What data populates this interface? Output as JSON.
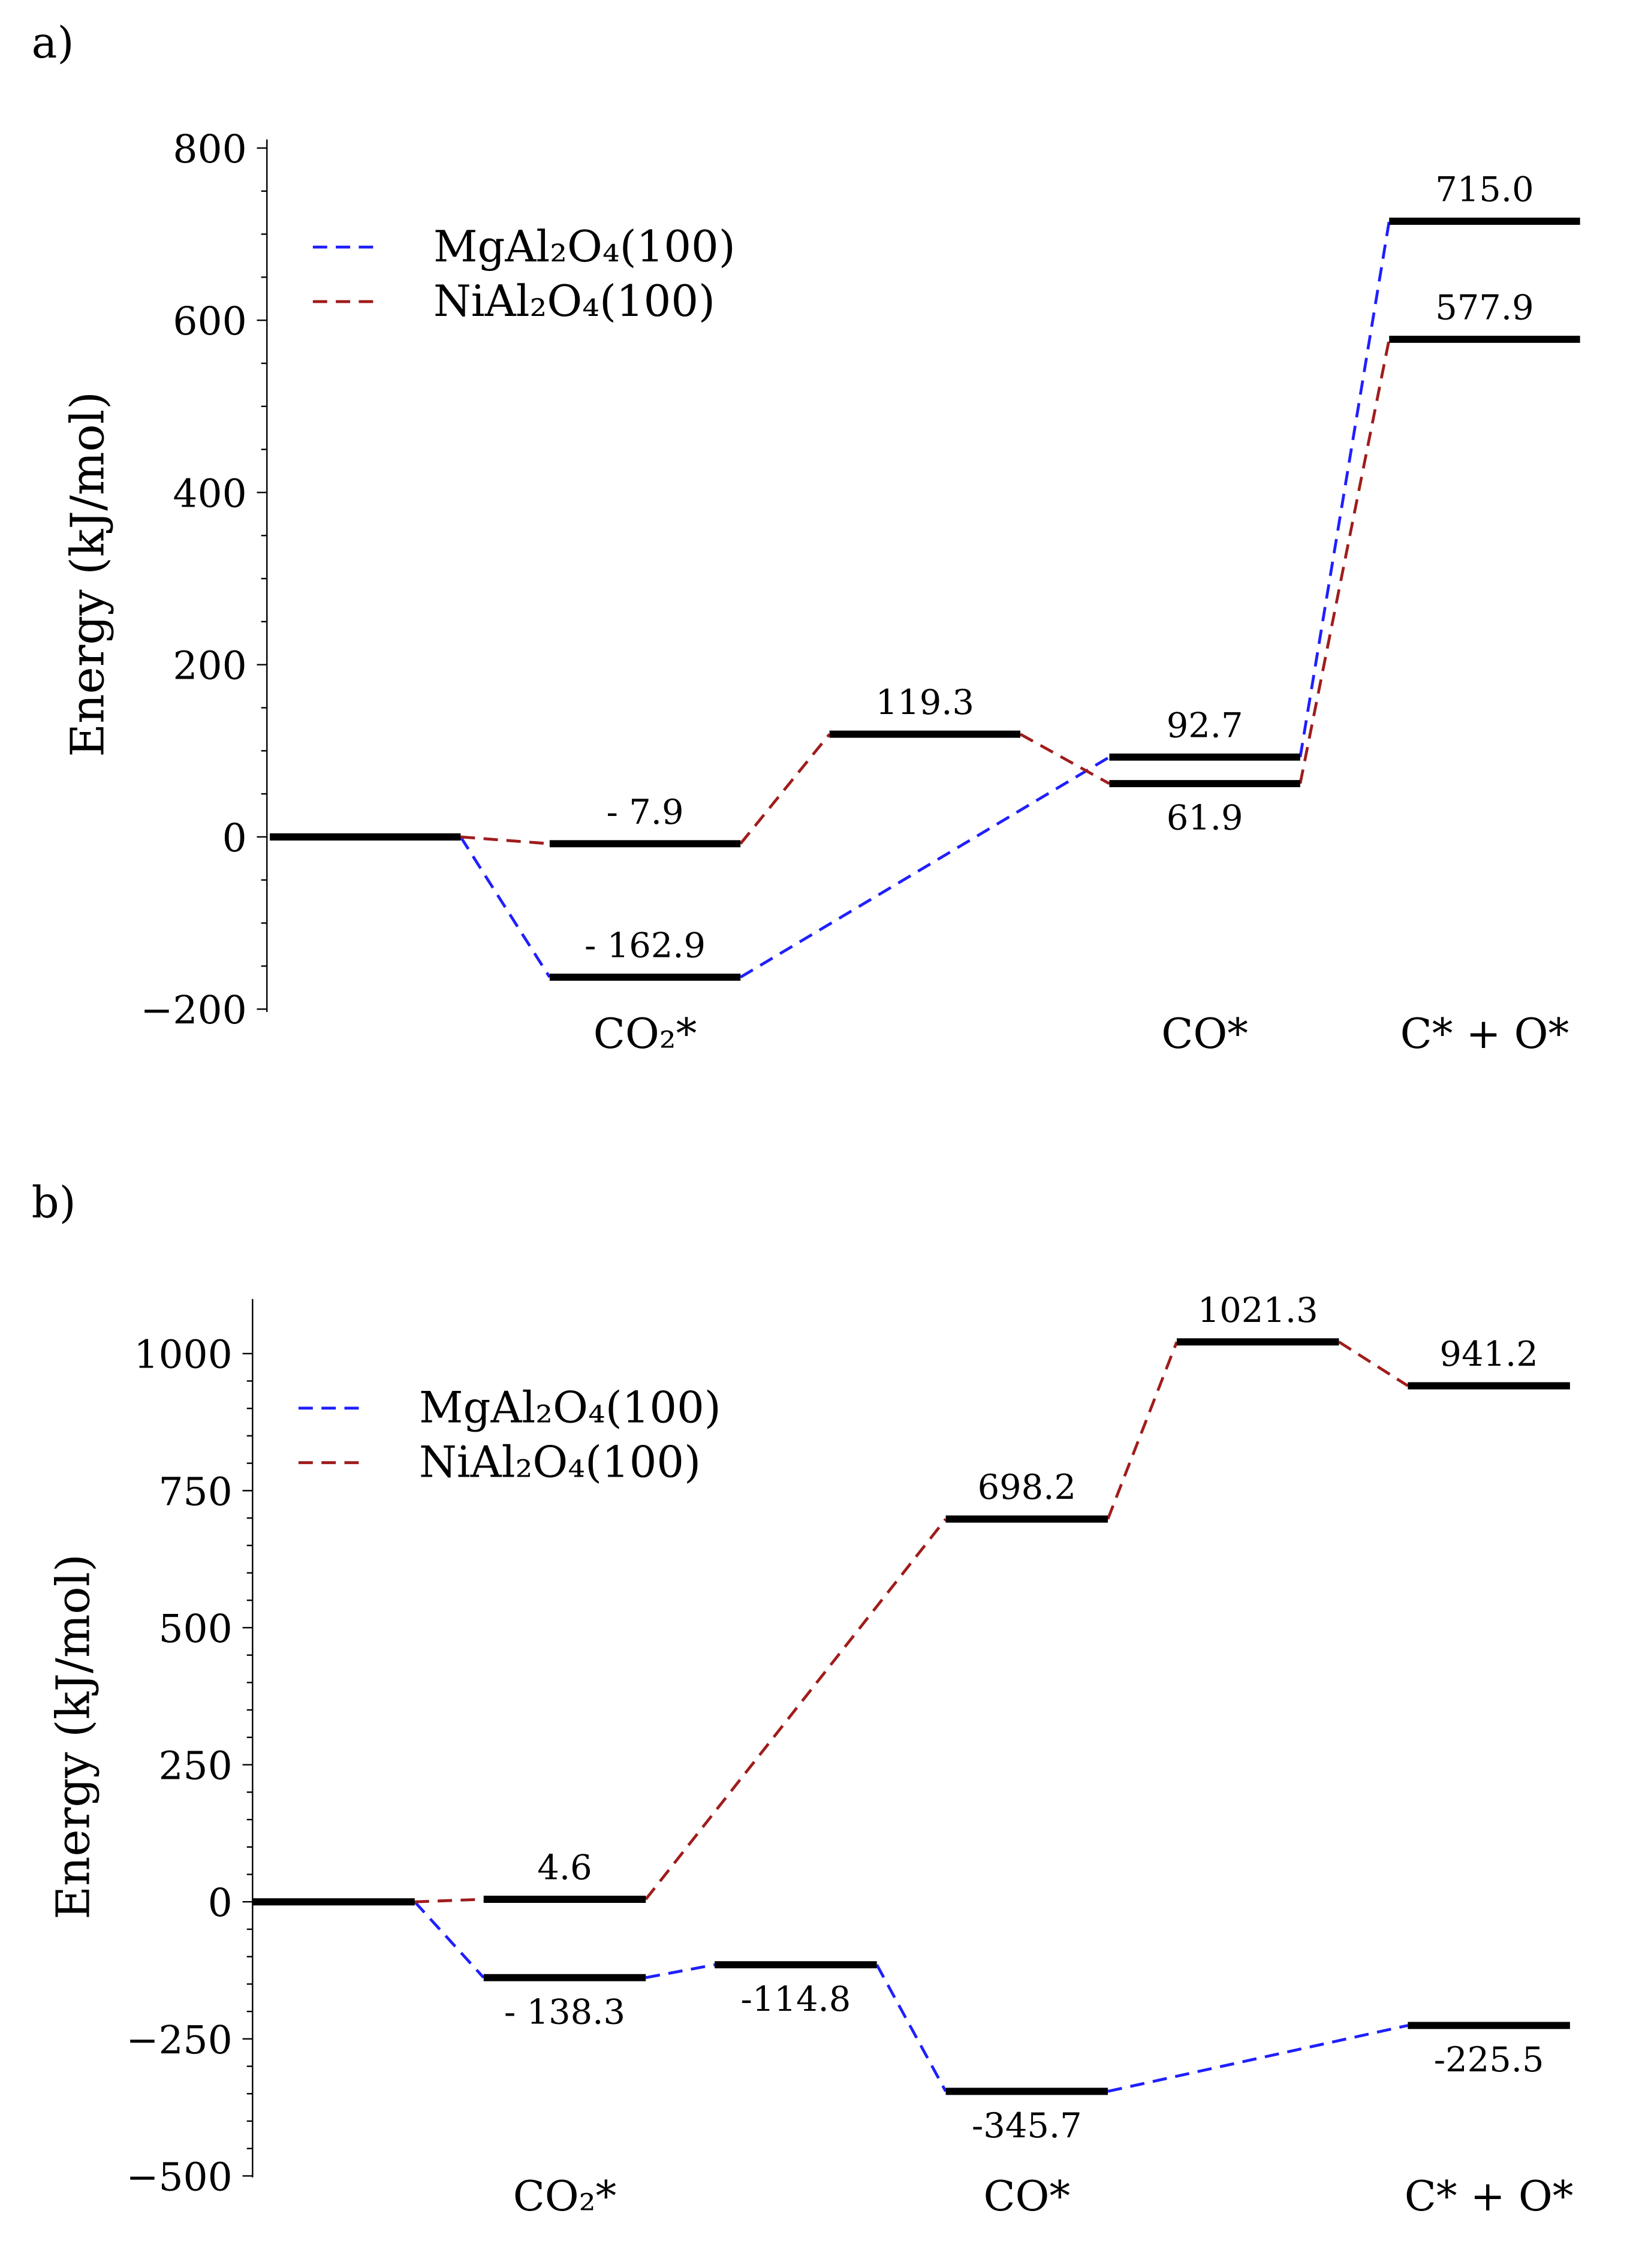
{
  "colors": {
    "mg": "#1f1fff",
    "ni": "#a01c1c",
    "level": "#000000"
  },
  "chart_data": [
    {
      "type": "line",
      "panel_label": "a)",
      "ylabel": "Energy (kJ/mol)",
      "ylim": [
        -200,
        800
      ],
      "yticks": [
        -200,
        0,
        200,
        400,
        600,
        800
      ],
      "yticklabels": [
        "−200",
        "0",
        "200",
        "400",
        "600",
        "800"
      ],
      "minor_tick_step": 50,
      "legend": {
        "placement": "top-left",
        "entries": [
          "MgAl₂O₄(100)",
          "NiAl₂O₄(100)"
        ]
      },
      "categories": [
        "",
        "CO₂*",
        "",
        "CO*",
        "C* + O*"
      ],
      "levels": [
        {
          "id": "r",
          "col": 0,
          "value": 0,
          "label": "",
          "pos": "above"
        },
        {
          "id": "mg1",
          "col": 1,
          "value": -162.9,
          "label": "- 162.9",
          "pos": "above"
        },
        {
          "id": "ni1",
          "col": 1,
          "value": -7.9,
          "label": "- 7.9",
          "pos": "above"
        },
        {
          "id": "ni2",
          "col": 2,
          "value": 119.3,
          "label": "119.3",
          "pos": "above"
        },
        {
          "id": "mg3",
          "col": 3,
          "value": 92.7,
          "label": "92.7",
          "pos": "above"
        },
        {
          "id": "ni3",
          "col": 3,
          "value": 61.9,
          "label": "61.9",
          "pos": "below"
        },
        {
          "id": "mg4",
          "col": 4,
          "value": 715.0,
          "label": "715.0",
          "pos": "above"
        },
        {
          "id": "ni4",
          "col": 4,
          "value": 577.9,
          "label": "577.9",
          "pos": "above"
        }
      ],
      "series": [
        {
          "name": "MgAl₂O₄(100)",
          "color": "#1f1fff",
          "path": [
            "r",
            "mg1",
            "mg3",
            "mg4"
          ]
        },
        {
          "name": "NiAl₂O₄(100)",
          "color": "#a01c1c",
          "path": [
            "r",
            "ni1",
            "ni2",
            "ni3",
            "ni4"
          ]
        }
      ]
    },
    {
      "type": "line",
      "panel_label": "b)",
      "ylabel": "Energy (kJ/mol)",
      "ylim": [
        -500,
        1000
      ],
      "yticks": [
        -500,
        -250,
        0,
        250,
        500,
        750,
        1000
      ],
      "yticklabels": [
        "−500",
        "−250",
        "0",
        "250",
        "500",
        "750",
        "1000"
      ],
      "minor_tick_step": 50,
      "legend": {
        "placement": "top-left",
        "entries": [
          "MgAl₂O₄(100)",
          "NiAl₂O₄(100)"
        ]
      },
      "categories": [
        "",
        "CO₂*",
        "",
        "CO*",
        "",
        "C* + O*"
      ],
      "levels": [
        {
          "id": "r",
          "col": 0,
          "value": 0,
          "label": "",
          "pos": "above"
        },
        {
          "id": "mg1",
          "col": 1,
          "value": -138.3,
          "label": "- 138.3",
          "pos": "below"
        },
        {
          "id": "ni1",
          "col": 1,
          "value": 4.6,
          "label": "4.6",
          "pos": "above"
        },
        {
          "id": "mg2",
          "col": 2,
          "value": -114.8,
          "label": "-114.8",
          "pos": "below"
        },
        {
          "id": "mg3",
          "col": 3,
          "value": -345.7,
          "label": "-345.7",
          "pos": "below"
        },
        {
          "id": "ni3",
          "col": 3,
          "value": 698.2,
          "label": "698.2",
          "pos": "above"
        },
        {
          "id": "ni4",
          "col": 4,
          "value": 1021.3,
          "label": "1021.3",
          "pos": "above"
        },
        {
          "id": "mg5",
          "col": 5,
          "value": -225.5,
          "label": "-225.5",
          "pos": "below"
        },
        {
          "id": "ni5",
          "col": 5,
          "value": 941.2,
          "label": "941.2",
          "pos": "above"
        }
      ],
      "series": [
        {
          "name": "MgAl₂O₄(100)",
          "color": "#1f1fff",
          "path": [
            "r",
            "mg1",
            "mg2",
            "mg3",
            "mg5"
          ]
        },
        {
          "name": "NiAl₂O₄(100)",
          "color": "#a01c1c",
          "path": [
            "r",
            "ni1",
            "ni3",
            "ni4",
            "ni5"
          ]
        }
      ]
    }
  ]
}
